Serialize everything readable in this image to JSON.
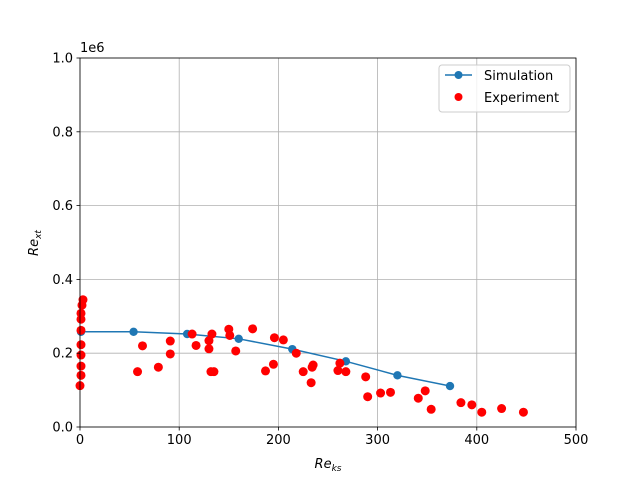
{
  "chart_data": {
    "type": "scatter",
    "title": "",
    "xlabel": "Re_ks",
    "ylabel": "Re_xt",
    "offset_label": "1e6",
    "xlim": [
      0,
      500
    ],
    "ylim": [
      0,
      1000000
    ],
    "x_ticks": [
      0,
      100,
      200,
      300,
      400,
      500
    ],
    "y_ticks": [
      0.0,
      0.2,
      0.4,
      0.6,
      0.8,
      1.0
    ],
    "y_tick_labels": [
      "0.0",
      "0.2",
      "0.4",
      "0.6",
      "0.8",
      "1.0"
    ],
    "grid": true,
    "legend_position": "upper right",
    "series": [
      {
        "name": "Simulation",
        "kind": "line-marker",
        "color": "#1f77b4",
        "points": [
          [
            1,
            258000
          ],
          [
            54,
            258000
          ],
          [
            108,
            252000
          ],
          [
            160,
            239000
          ],
          [
            214,
            211000
          ],
          [
            268,
            178000
          ],
          [
            320,
            140000
          ],
          [
            373,
            111000
          ]
        ]
      },
      {
        "name": "Experiment",
        "kind": "scatter",
        "color": "#ff0000",
        "points": [
          [
            0,
            112000
          ],
          [
            1,
            140000
          ],
          [
            1,
            165000
          ],
          [
            1,
            195000
          ],
          [
            1,
            223000
          ],
          [
            1,
            262000
          ],
          [
            1,
            292000
          ],
          [
            1,
            308000
          ],
          [
            2,
            330000
          ],
          [
            3,
            345000
          ],
          [
            58,
            150000
          ],
          [
            63,
            220000
          ],
          [
            79,
            162000
          ],
          [
            91,
            198000
          ],
          [
            91,
            233000
          ],
          [
            113,
            252000
          ],
          [
            117,
            221000
          ],
          [
            130,
            212000
          ],
          [
            130,
            234000
          ],
          [
            132,
            150000
          ],
          [
            133,
            252000
          ],
          [
            135,
            150000
          ],
          [
            150,
            265000
          ],
          [
            151,
            248000
          ],
          [
            157,
            206000
          ],
          [
            174,
            266000
          ],
          [
            187,
            152000
          ],
          [
            195,
            170000
          ],
          [
            196,
            242000
          ],
          [
            205,
            236000
          ],
          [
            218,
            200000
          ],
          [
            225,
            150000
          ],
          [
            233,
            120000
          ],
          [
            234,
            162000
          ],
          [
            235,
            168000
          ],
          [
            260,
            153000
          ],
          [
            262,
            173000
          ],
          [
            268,
            150000
          ],
          [
            288,
            136000
          ],
          [
            290,
            82000
          ],
          [
            303,
            92000
          ],
          [
            313,
            94000
          ],
          [
            341,
            78000
          ],
          [
            348,
            98000
          ],
          [
            354,
            48000
          ],
          [
            384,
            66000
          ],
          [
            395,
            60000
          ],
          [
            405,
            40000
          ],
          [
            425,
            50000
          ],
          [
            447,
            40000
          ]
        ]
      }
    ]
  }
}
